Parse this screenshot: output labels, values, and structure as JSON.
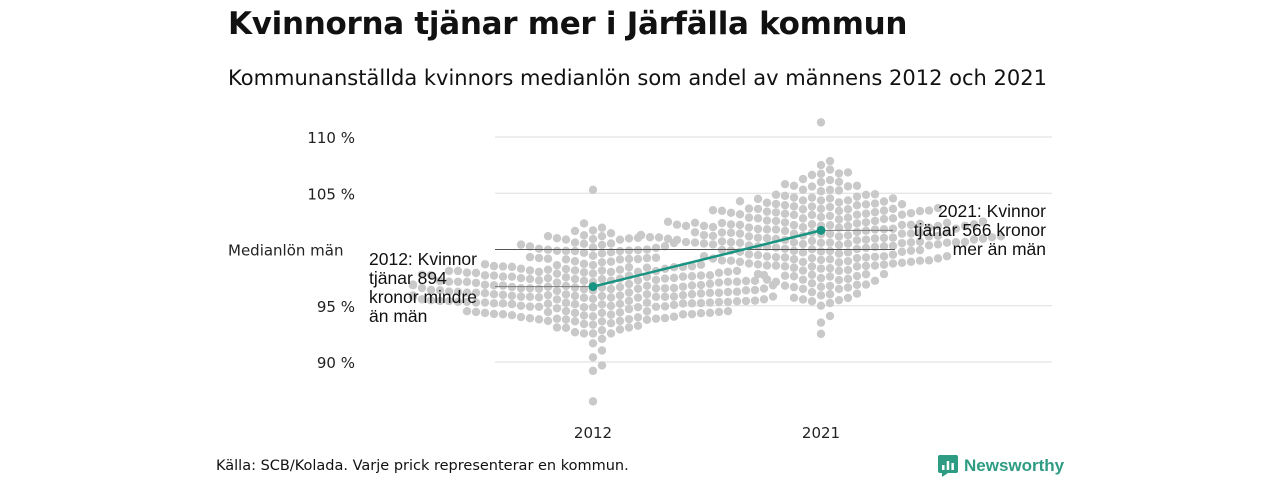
{
  "header": {
    "title": "Kvinnorna tjänar mer i Järfälla kommun",
    "subtitle": "Kommunanställda kvinnors medianlön som andel av männens 2012 och 2021"
  },
  "footer": {
    "source": "Källa: SCB/Kolada. Varje prick representerar en kommun.",
    "brand": "Newsworthy"
  },
  "colors": {
    "highlight": "#1a9482",
    "dots": "#c9c9c9",
    "grid": "#dddddd",
    "brand": "#2e9c82"
  },
  "chart_data": {
    "type": "scatter",
    "categories": [
      "2012",
      "2021"
    ],
    "yticks": [
      90,
      95,
      105,
      110
    ],
    "ytick_labels": [
      "90 %",
      "95 %",
      "105 %",
      "110 %"
    ],
    "ylim": [
      85.6,
      112.2
    ],
    "reference_line": {
      "label": "Medianlön män",
      "value": 100
    },
    "highlight_series": {
      "values": [
        96.7,
        101.7
      ],
      "annotations": [
        [
          "2012: Kvinnor",
          "tjänar 894",
          "kronor mindre",
          "än män"
        ],
        [
          "2021: Kvinnor",
          "tjänar 566 kronor",
          "mer än män"
        ]
      ]
    },
    "swarm_distribution": [
      {
        "center": 96.5,
        "spread": 2.4,
        "min": 86.5,
        "max": 105.3,
        "count": 290
      },
      {
        "center": 101.0,
        "spread": 2.6,
        "min": 92.5,
        "max": 111.3,
        "count": 290
      }
    ]
  }
}
